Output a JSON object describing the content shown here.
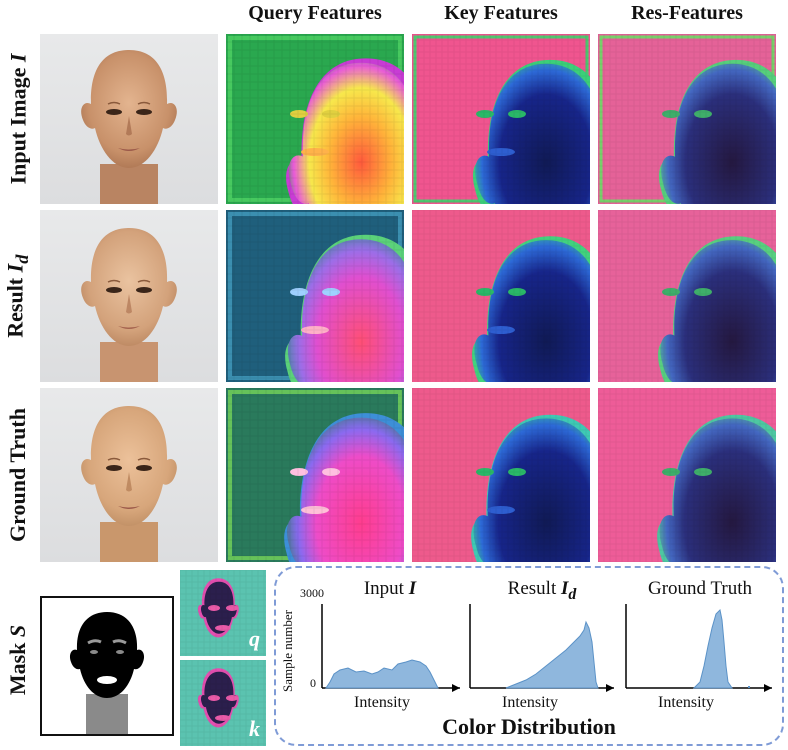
{
  "columns": {
    "query": "Query Features",
    "key": "Key Features",
    "res": "Res-Features"
  },
  "rows": {
    "input": {
      "label": "Input Image",
      "symbol": "I"
    },
    "result": {
      "label": "Result",
      "symbol": "I",
      "subscript": "d"
    },
    "ground": {
      "label": "Ground Truth"
    }
  },
  "mask": {
    "label": "Mask",
    "symbol": "S"
  },
  "qk": {
    "q": "q",
    "k": "k"
  },
  "color_distribution": {
    "title": "Color Distribution",
    "y_label": "Sample number",
    "x_label": "Intensity",
    "y_top_tick": "3000",
    "y_zero_tick": "0",
    "histograms": {
      "input": {
        "title": "Input",
        "symbol": "I"
      },
      "result": {
        "title": "Result",
        "symbol": "I",
        "subscript": "d"
      },
      "ground": {
        "title": "Ground Truth"
      }
    }
  },
  "colors": {
    "dashed_border": "#7f9bd6",
    "histogram_fill": "#8fb7dd",
    "histogram_stroke": "#5b92c7"
  }
}
